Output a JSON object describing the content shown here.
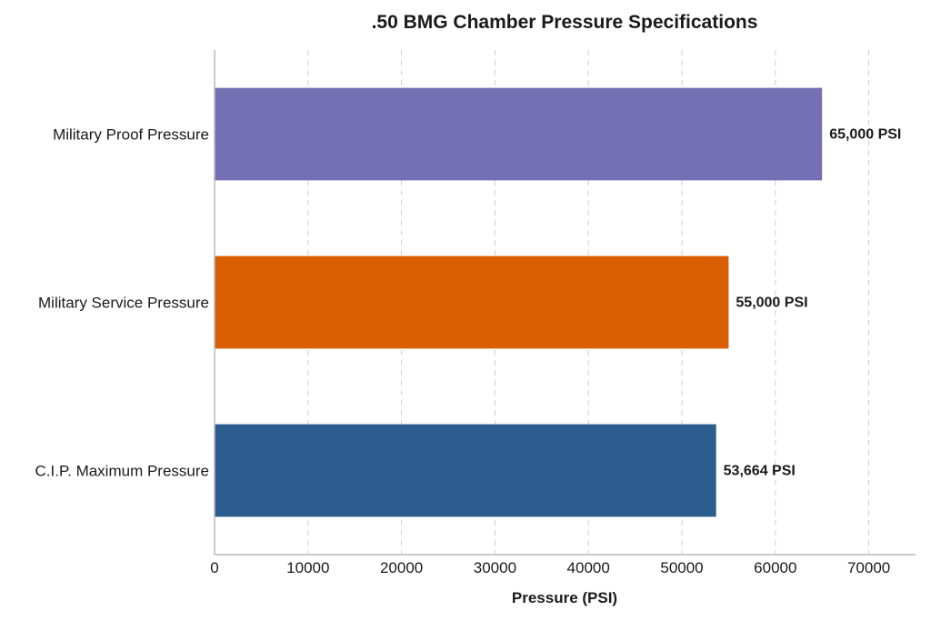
{
  "chart_data": {
    "type": "bar",
    "orientation": "horizontal",
    "title": ".50 BMG Chamber Pressure Specifications",
    "xlabel": "Pressure (PSI)",
    "ylabel": "",
    "xlim": [
      0,
      75000
    ],
    "xticks": [
      0,
      10000,
      20000,
      30000,
      40000,
      50000,
      60000,
      70000
    ],
    "xtick_labels": [
      "0",
      "10000",
      "20000",
      "30000",
      "40000",
      "50000",
      "60000",
      "70000"
    ],
    "grid": "x-dashed",
    "legend": "none",
    "categories": [
      "Military Proof Pressure",
      "Military Service Pressure",
      "C.I.P. Maximum Pressure"
    ],
    "values": [
      65000,
      55000,
      53664
    ],
    "data_labels": [
      "65,000 PSI",
      "55,000 PSI",
      "53,664 PSI"
    ],
    "colors": [
      "#7570b3",
      "#d95f02",
      "#2c5d8f"
    ]
  }
}
